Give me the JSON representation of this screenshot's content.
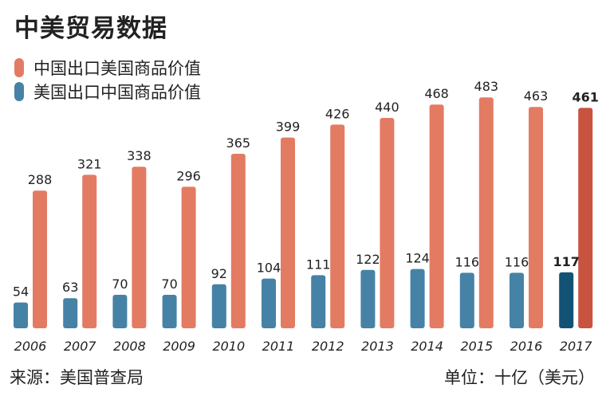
{
  "title": "中美贸易数据",
  "source": "来源：美国普查局",
  "unit": "单位：十亿（美元）",
  "colors": {
    "china_exports": "#e37b63",
    "us_exports": "#4682a5",
    "china_exports_highlight": "#c8533f",
    "us_exports_highlight": "#125275",
    "text": "#222222"
  },
  "chart_data": {
    "type": "bar",
    "categories": [
      "2006",
      "2007",
      "2008",
      "2009",
      "2010",
      "2011",
      "2012",
      "2013",
      "2014",
      "2015",
      "2016",
      "2017"
    ],
    "series": [
      {
        "name": "中国出口美国商品价值",
        "values": [
          288,
          321,
          338,
          296,
          365,
          399,
          426,
          440,
          468,
          483,
          463,
          461
        ]
      },
      {
        "name": "美国出口中国商品价值",
        "values": [
          54,
          63,
          70,
          70,
          92,
          104,
          111,
          122,
          124,
          116,
          116,
          117
        ]
      }
    ],
    "ylim": [
      0,
      500
    ],
    "grid": false,
    "legend_position": "top-left",
    "highlighted_category": "2017"
  }
}
